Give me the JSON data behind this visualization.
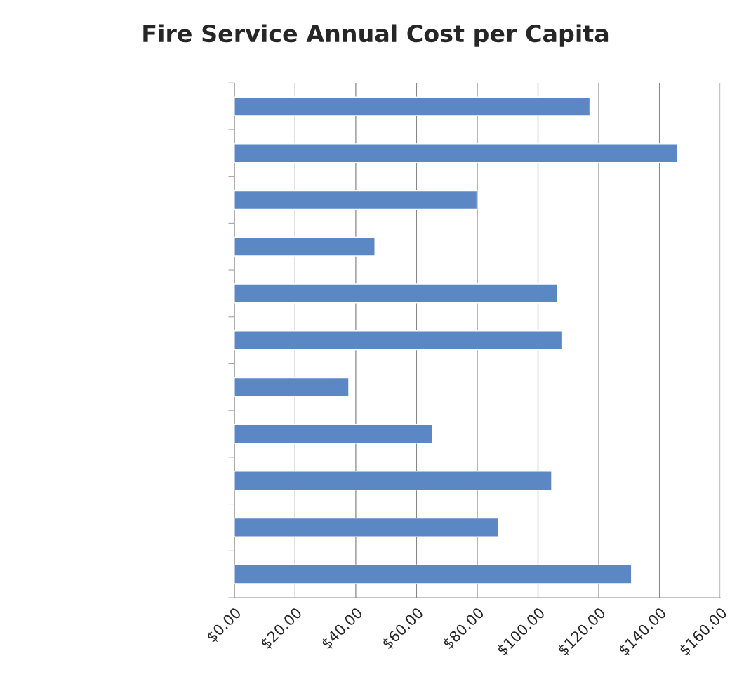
{
  "chart_data": {
    "type": "bar",
    "orientation": "horizontal",
    "title": "Fire Service Annual Cost per Capita",
    "categories": [
      null,
      null,
      null,
      null,
      null,
      null,
      null,
      null,
      null,
      null,
      null
    ],
    "values": [
      117.1,
      146.0,
      79.9,
      46.3,
      106.3,
      108.1,
      37.7,
      65.3,
      104.5,
      87.0,
      130.8
    ],
    "color": "#5b87c5",
    "xlim": [
      0,
      160
    ],
    "xticks": [
      {
        "value": 0,
        "label": "$0.00"
      },
      {
        "value": 20,
        "label": "$20.00"
      },
      {
        "value": 40,
        "label": "$40.00"
      },
      {
        "value": 60,
        "label": "$60.00"
      },
      {
        "value": 80,
        "label": "$80.00"
      },
      {
        "value": 100,
        "label": "$100.00"
      },
      {
        "value": 120,
        "label": "$120.00"
      },
      {
        "value": 140,
        "label": "$140.00"
      },
      {
        "value": 160,
        "label": "$160.00"
      }
    ],
    "grid": "x",
    "tick_labels": "x",
    "legend": false
  }
}
